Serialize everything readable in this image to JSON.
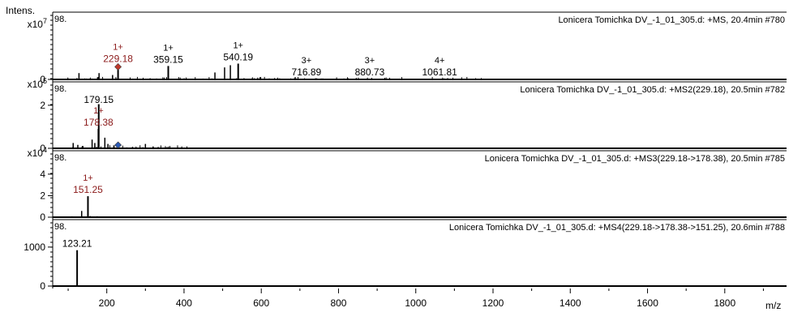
{
  "axis": {
    "intensity_label": "Intens.",
    "x_unit": "m/z",
    "x_range": [
      60,
      1960
    ],
    "x_ticks": [
      200,
      400,
      600,
      800,
      1000,
      1200,
      1400,
      1600,
      1800
    ]
  },
  "colors": {
    "trace": "#000000",
    "precursor_label": "#8b1a1a",
    "precursor_marker_ms1": "#c0392b",
    "precursor_marker_ms2": "#2e5cb8"
  },
  "chart_data": [
    {
      "type": "line",
      "scan": "+MS",
      "title": "Lonicera Tomichka DV_-1_01_305.d: +MS, 20.4min #780",
      "base_peak_label": "98.",
      "y_multiplier": "x10^7",
      "yticks": [
        0
      ],
      "ylim": [
        0,
        4.0
      ],
      "peaks": [
        {
          "x": 229.18,
          "y": 0.9,
          "label": "229.18",
          "charge": "1+",
          "highlight": true
        },
        {
          "x": 359.15,
          "y": 0.85,
          "label": "359.15",
          "charge": "1+"
        },
        {
          "x": 540.19,
          "y": 1.0,
          "label": "540.19",
          "charge": "1+"
        },
        {
          "x": 716.89,
          "y": 0.05,
          "label": "716.89",
          "charge": "3+"
        },
        {
          "x": 880.73,
          "y": 0.05,
          "label": "880.73",
          "charge": "3+"
        },
        {
          "x": 1061.81,
          "y": 0.05,
          "label": "1061.81",
          "charge": "4+"
        }
      ],
      "precursor_marker": {
        "x": 229.18,
        "y": 0.9,
        "color": "#c0392b"
      }
    },
    {
      "type": "line",
      "scan": "+MS2",
      "title": "Lonicera Tomichka DV_-1_01_305.d: +MS2(229.18), 20.5min #782",
      "base_peak_label": "98.",
      "y_multiplier": "x10^5",
      "yticks": [
        0,
        2
      ],
      "ylim": [
        0,
        2.9
      ],
      "peaks": [
        {
          "x": 179.15,
          "y": 2.05,
          "label": "179.15"
        },
        {
          "x": 178.38,
          "y": 0.9,
          "label": "178.38",
          "charge": "1+",
          "highlight": true
        }
      ],
      "precursor_marker": {
        "x": 229.18,
        "y": 0.0,
        "color": "#2e5cb8"
      }
    },
    {
      "type": "line",
      "scan": "+MS3",
      "title": "Lonicera Tomichka DV_-1_01_305.d: +MS3(229.18->178.38), 20.5min #785",
      "base_peak_label": "98.",
      "y_multiplier": "x10^4",
      "yticks": [
        0,
        2,
        4
      ],
      "ylim": [
        0,
        5.8
      ],
      "peaks": [
        {
          "x": 151.25,
          "y": 1.95,
          "label": "151.25",
          "charge": "1+",
          "highlight": true
        }
      ]
    },
    {
      "type": "line",
      "scan": "+MS4",
      "title": "Lonicera Tomichka DV_-1_01_305.d: +MS4(229.18->178.38->151.25), 20.6min #788",
      "base_peak_label": "98.",
      "y_multiplier": "",
      "yticks": [
        0,
        1000
      ],
      "ylim": [
        0,
        1600
      ],
      "peaks": [
        {
          "x": 123.21,
          "y": 920,
          "label": "123.21"
        }
      ]
    }
  ]
}
